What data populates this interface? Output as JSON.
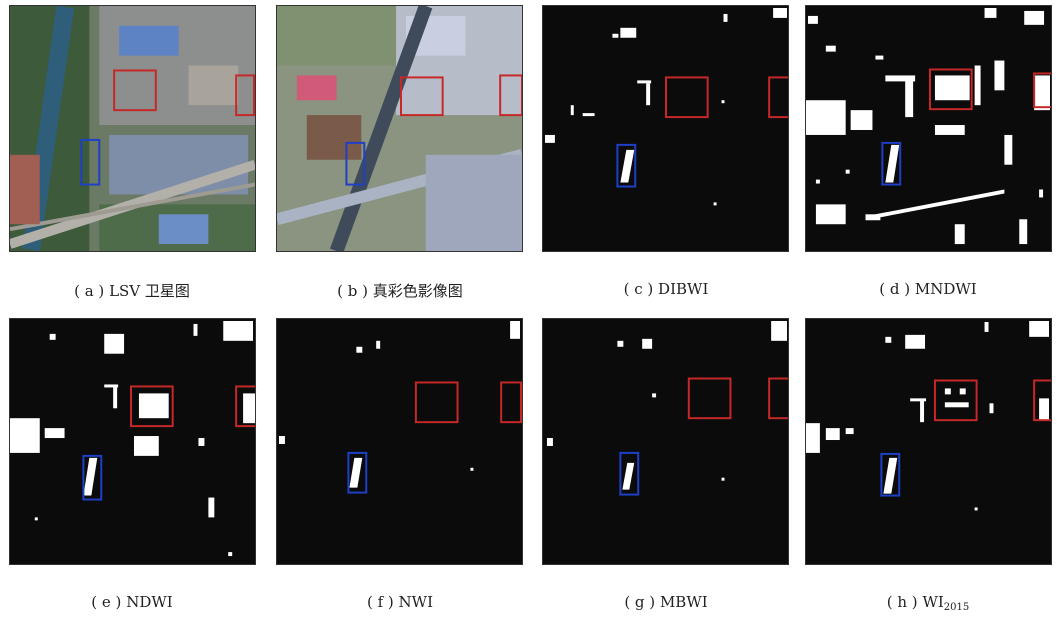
{
  "figure": {
    "panels": [
      {
        "caption_label": "( a )",
        "caption_text": "LSV 卫星图"
      },
      {
        "caption_label": "( b )",
        "caption_text": "真彩色影像图"
      },
      {
        "caption_label": "( c )",
        "caption_text": "DIBWI"
      },
      {
        "caption_label": "( d )",
        "caption_text": "MNDWI"
      },
      {
        "caption_label": "( e )",
        "caption_text": "NDWI"
      },
      {
        "caption_label": "( f )",
        "caption_text": "NWI"
      },
      {
        "caption_label": "( g )",
        "caption_text": "MBWI"
      },
      {
        "caption_label": "( h )",
        "caption_text": "WI",
        "caption_sub": "2015"
      }
    ],
    "colors": {
      "highlight_red": "#c62828",
      "highlight_blue": "#1e3fc8",
      "water": "#ffffff",
      "background": "#0b0b0b"
    }
  }
}
